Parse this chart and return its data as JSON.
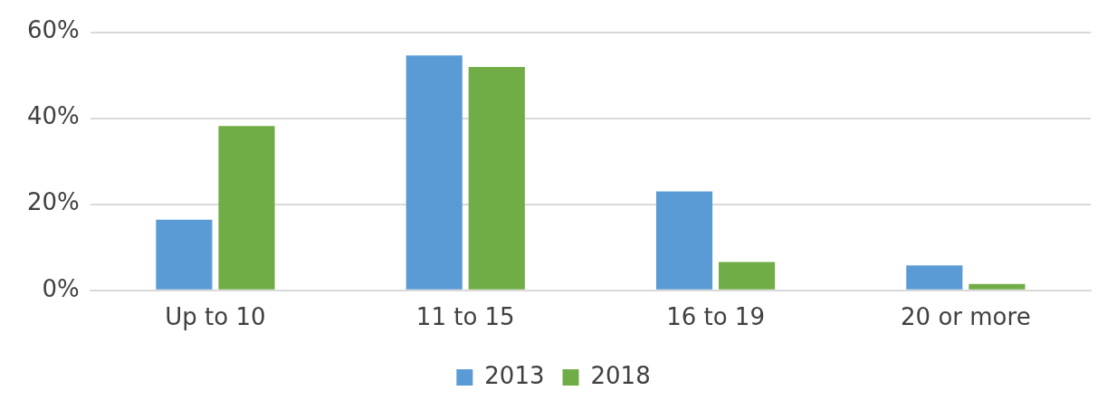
{
  "chart_data": {
    "type": "bar",
    "categories": [
      "Up to 10",
      "11 to 15",
      "16 to 19",
      "20 or more"
    ],
    "series": [
      {
        "name": "2013",
        "color": "#5b9bd5",
        "values": [
          16.4,
          54.6,
          23.0,
          5.8
        ]
      },
      {
        "name": "2018",
        "color": "#70ad47",
        "values": [
          38.2,
          51.9,
          6.6,
          1.5
        ]
      }
    ],
    "ylim": [
      0,
      60
    ],
    "yticks": [
      {
        "value": 0,
        "label": "0%"
      },
      {
        "value": 20,
        "label": "20%"
      },
      {
        "value": 40,
        "label": "40%"
      },
      {
        "value": 60,
        "label": "60%"
      }
    ],
    "grid": "y",
    "legend": "bottom"
  }
}
